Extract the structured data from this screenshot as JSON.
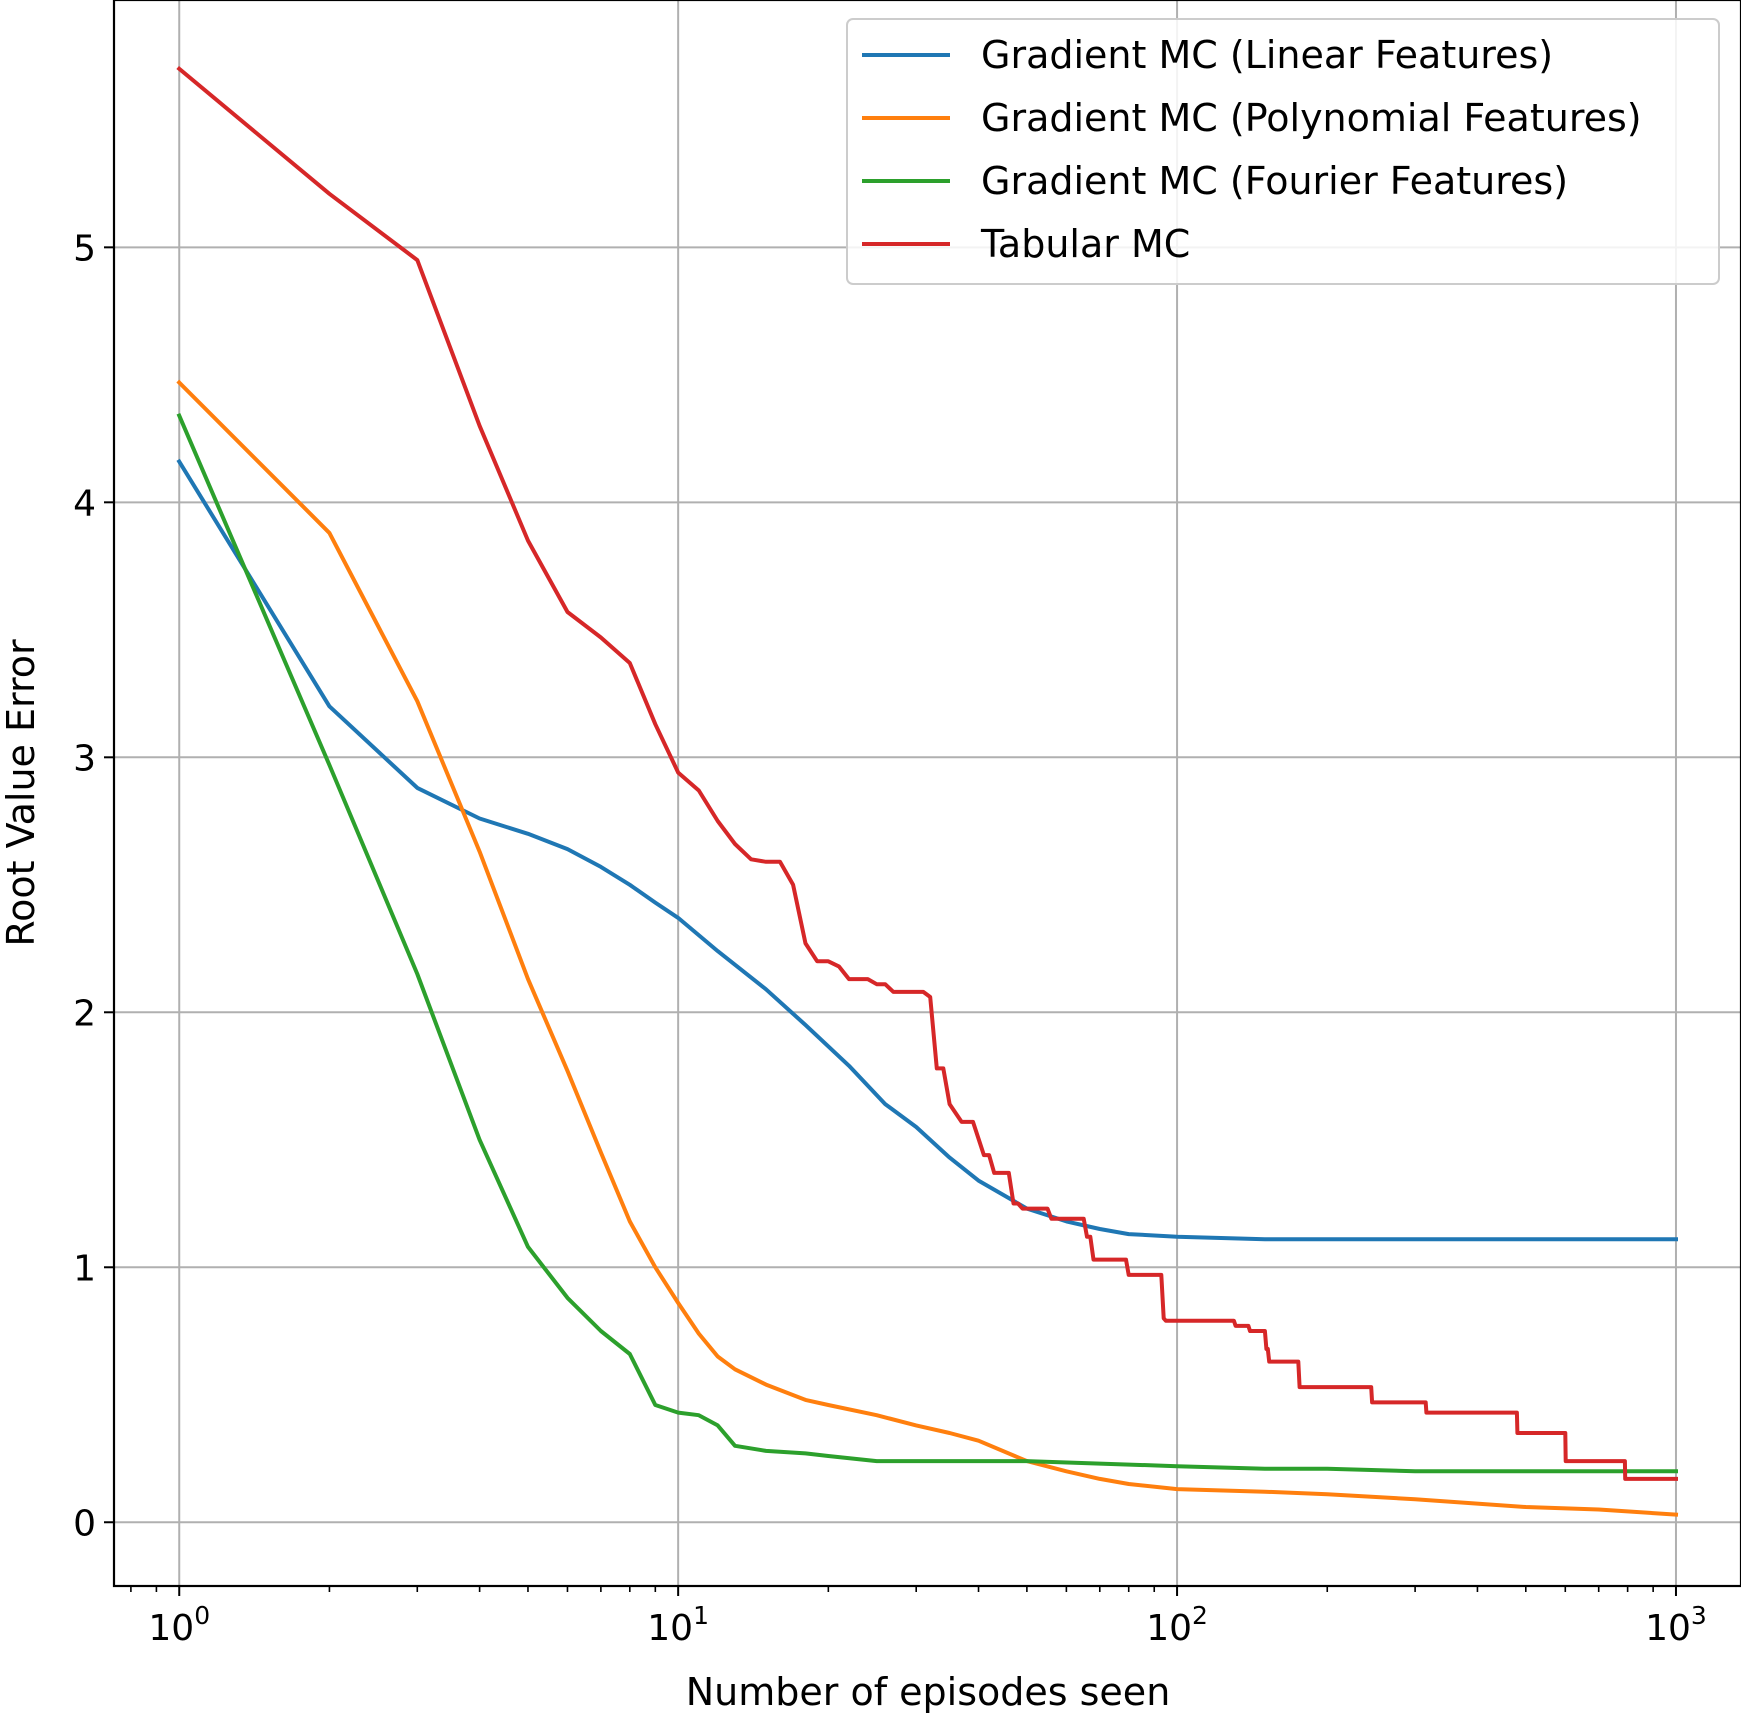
{
  "chart_data": {
    "type": "line",
    "title": "",
    "xlabel": "Number of episodes seen",
    "ylabel": "Root Value Error",
    "xscale": "log",
    "xlim": [
      0.74,
      1350
    ],
    "ylim": [
      -0.25,
      5.97
    ],
    "grid": true,
    "legend_position": "top-right",
    "x_ticks": [
      {
        "value": 1,
        "base": "10",
        "exp": "0"
      },
      {
        "value": 10,
        "base": "10",
        "exp": "1"
      },
      {
        "value": 100,
        "base": "10",
        "exp": "2"
      },
      {
        "value": 1000,
        "base": "10",
        "exp": "3"
      }
    ],
    "y_ticks": [
      {
        "value": 0,
        "label": "0"
      },
      {
        "value": 1,
        "label": "1"
      },
      {
        "value": 2,
        "label": "2"
      },
      {
        "value": 3,
        "label": "3"
      },
      {
        "value": 4,
        "label": "4"
      },
      {
        "value": 5,
        "label": "5"
      }
    ],
    "series": [
      {
        "name": "Gradient MC (Linear Features)",
        "color": "#1f77b4",
        "step": false,
        "points": [
          [
            1,
            4.16
          ],
          [
            2,
            3.2
          ],
          [
            3,
            2.88
          ],
          [
            4,
            2.76
          ],
          [
            5,
            2.7
          ],
          [
            6,
            2.64
          ],
          [
            7,
            2.57
          ],
          [
            8,
            2.5
          ],
          [
            9,
            2.43
          ],
          [
            10,
            2.37
          ],
          [
            12,
            2.24
          ],
          [
            15,
            2.09
          ],
          [
            18,
            1.95
          ],
          [
            22,
            1.79
          ],
          [
            26,
            1.64
          ],
          [
            30,
            1.55
          ],
          [
            35,
            1.43
          ],
          [
            40,
            1.34
          ],
          [
            50,
            1.23
          ],
          [
            60,
            1.18
          ],
          [
            70,
            1.15
          ],
          [
            80,
            1.13
          ],
          [
            100,
            1.12
          ],
          [
            150,
            1.11
          ],
          [
            200,
            1.11
          ],
          [
            300,
            1.11
          ],
          [
            500,
            1.11
          ],
          [
            700,
            1.11
          ],
          [
            1000,
            1.11
          ]
        ]
      },
      {
        "name": "Gradient MC (Polynomial Features)",
        "color": "#ff7f0e",
        "step": false,
        "points": [
          [
            1,
            4.47
          ],
          [
            2,
            3.88
          ],
          [
            3,
            3.22
          ],
          [
            4,
            2.63
          ],
          [
            5,
            2.13
          ],
          [
            6,
            1.77
          ],
          [
            7,
            1.45
          ],
          [
            8,
            1.18
          ],
          [
            9,
            1.0
          ],
          [
            10,
            0.86
          ],
          [
            11,
            0.74
          ],
          [
            12,
            0.65
          ],
          [
            13,
            0.6
          ],
          [
            15,
            0.54
          ],
          [
            18,
            0.48
          ],
          [
            20,
            0.46
          ],
          [
            25,
            0.42
          ],
          [
            30,
            0.38
          ],
          [
            35,
            0.35
          ],
          [
            40,
            0.32
          ],
          [
            50,
            0.24
          ],
          [
            60,
            0.2
          ],
          [
            70,
            0.17
          ],
          [
            80,
            0.15
          ],
          [
            100,
            0.13
          ],
          [
            150,
            0.12
          ],
          [
            200,
            0.11
          ],
          [
            300,
            0.09
          ],
          [
            500,
            0.06
          ],
          [
            700,
            0.05
          ],
          [
            1000,
            0.03
          ]
        ]
      },
      {
        "name": "Gradient MC (Fourier Features)",
        "color": "#2ca02c",
        "step": false,
        "points": [
          [
            1,
            4.34
          ],
          [
            2,
            2.97
          ],
          [
            3,
            2.15
          ],
          [
            4,
            1.5
          ],
          [
            5,
            1.08
          ],
          [
            6,
            0.88
          ],
          [
            7,
            0.75
          ],
          [
            8,
            0.66
          ],
          [
            9,
            0.46
          ],
          [
            10,
            0.43
          ],
          [
            11,
            0.42
          ],
          [
            12,
            0.38
          ],
          [
            13,
            0.3
          ],
          [
            15,
            0.28
          ],
          [
            18,
            0.27
          ],
          [
            20,
            0.26
          ],
          [
            25,
            0.24
          ],
          [
            30,
            0.24
          ],
          [
            40,
            0.24
          ],
          [
            50,
            0.24
          ],
          [
            70,
            0.23
          ],
          [
            100,
            0.22
          ],
          [
            150,
            0.21
          ],
          [
            200,
            0.21
          ],
          [
            300,
            0.2
          ],
          [
            500,
            0.2
          ],
          [
            700,
            0.2
          ],
          [
            1000,
            0.2
          ]
        ]
      },
      {
        "name": "Tabular MC",
        "color": "#d62728",
        "step": false,
        "points": [
          [
            1,
            5.7
          ],
          [
            2,
            5.21
          ],
          [
            3,
            4.95
          ],
          [
            4,
            4.3
          ],
          [
            5,
            3.85
          ],
          [
            6,
            3.57
          ],
          [
            7,
            3.47
          ],
          [
            8,
            3.37
          ],
          [
            9,
            3.13
          ],
          [
            10,
            2.94
          ],
          [
            11,
            2.87
          ],
          [
            12,
            2.75
          ],
          [
            13,
            2.66
          ],
          [
            14,
            2.6
          ],
          [
            15,
            2.59
          ],
          [
            16,
            2.59
          ],
          [
            17,
            2.5
          ],
          [
            18,
            2.27
          ],
          [
            19,
            2.2
          ],
          [
            20,
            2.2
          ],
          [
            21,
            2.18
          ],
          [
            22,
            2.13
          ],
          [
            24,
            2.13
          ],
          [
            25,
            2.11
          ],
          [
            26,
            2.11
          ],
          [
            27,
            2.08
          ],
          [
            31,
            2.08
          ],
          [
            32,
            2.06
          ],
          [
            33,
            1.78
          ],
          [
            34,
            1.78
          ],
          [
            35,
            1.64
          ],
          [
            37,
            1.57
          ],
          [
            39,
            1.57
          ],
          [
            41,
            1.44
          ],
          [
            42,
            1.44
          ],
          [
            43,
            1.37
          ],
          [
            46,
            1.37
          ],
          [
            47,
            1.25
          ],
          [
            48,
            1.25
          ],
          [
            49,
            1.23
          ],
          [
            55,
            1.23
          ],
          [
            56,
            1.19
          ],
          [
            65,
            1.19
          ],
          [
            66,
            1.12
          ],
          [
            67,
            1.12
          ],
          [
            68,
            1.03
          ],
          [
            79,
            1.03
          ],
          [
            80,
            0.97
          ],
          [
            93,
            0.97
          ],
          [
            94,
            0.8
          ],
          [
            95,
            0.79
          ],
          [
            130,
            0.79
          ],
          [
            131,
            0.77
          ],
          [
            139,
            0.77
          ],
          [
            140,
            0.75
          ],
          [
            150,
            0.75
          ],
          [
            151,
            0.68
          ],
          [
            152,
            0.68
          ],
          [
            153,
            0.63
          ],
          [
            175,
            0.63
          ],
          [
            176,
            0.53
          ],
          [
            245,
            0.53
          ],
          [
            246,
            0.47
          ],
          [
            315,
            0.47
          ],
          [
            316,
            0.43
          ],
          [
            480,
            0.43
          ],
          [
            481,
            0.35
          ],
          [
            600,
            0.35
          ],
          [
            601,
            0.24
          ],
          [
            790,
            0.24
          ],
          [
            791,
            0.17
          ],
          [
            1000,
            0.17
          ]
        ]
      }
    ]
  }
}
